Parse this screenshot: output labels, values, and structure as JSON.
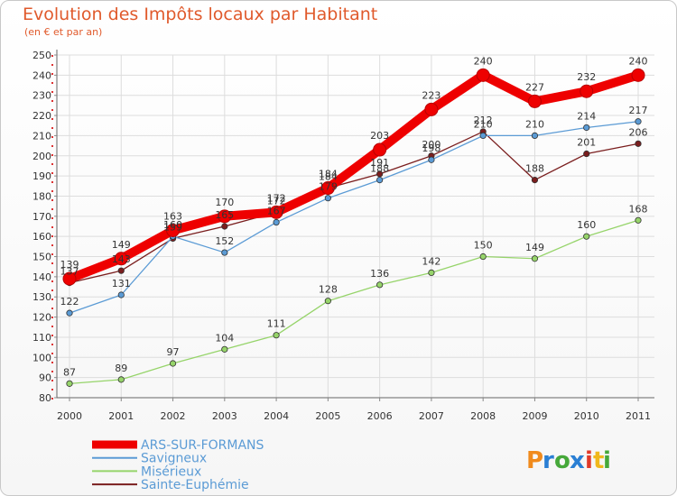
{
  "title": "Evolution des Impôts locaux par Habitant",
  "subtitle": "(en € et par an)",
  "logo": {
    "letters": [
      "P",
      "r",
      "o",
      "x",
      "i",
      "t",
      "i"
    ],
    "colors": [
      "#f08a1c",
      "#2a7fd4",
      "#46a83a",
      "#2a7fd4",
      "#e03a2a",
      "#f0b81c",
      "#46a83a"
    ]
  },
  "chart_data": {
    "type": "line",
    "title": "Evolution des Impôts locaux par Habitant",
    "ylabel": "(en € et par an)",
    "xlabel": "",
    "ylim": [
      80,
      250
    ],
    "yticks": [
      80,
      90,
      100,
      110,
      120,
      130,
      140,
      150,
      160,
      170,
      180,
      190,
      200,
      210,
      220,
      230,
      240,
      250
    ],
    "categories": [
      "2000",
      "2001",
      "2002",
      "2003",
      "2004",
      "2005",
      "2006",
      "2007",
      "2008",
      "2009",
      "2010",
      "2011"
    ],
    "series": [
      {
        "name": "Sainte-Euphémie",
        "color": "#7a1e1e",
        "values": [
          137,
          143,
          159,
          165,
          172,
          184,
          191,
          200,
          212,
          188,
          201,
          206
        ]
      },
      {
        "name": "Misérieux",
        "color": "#96d46a",
        "values": [
          87,
          89,
          97,
          104,
          111,
          128,
          136,
          142,
          150,
          149,
          160,
          168
        ]
      },
      {
        "name": "Savigneux",
        "color": "#5b9bd5",
        "values": [
          122,
          131,
          160,
          152,
          167,
          179,
          188,
          198,
          210,
          210,
          214,
          217
        ]
      },
      {
        "name": "ARS-SUR-FORMANS",
        "color": "#ee0000",
        "values": [
          139,
          149,
          163,
          170,
          172,
          184,
          203,
          223,
          240,
          227,
          232,
          240
        ]
      }
    ]
  }
}
